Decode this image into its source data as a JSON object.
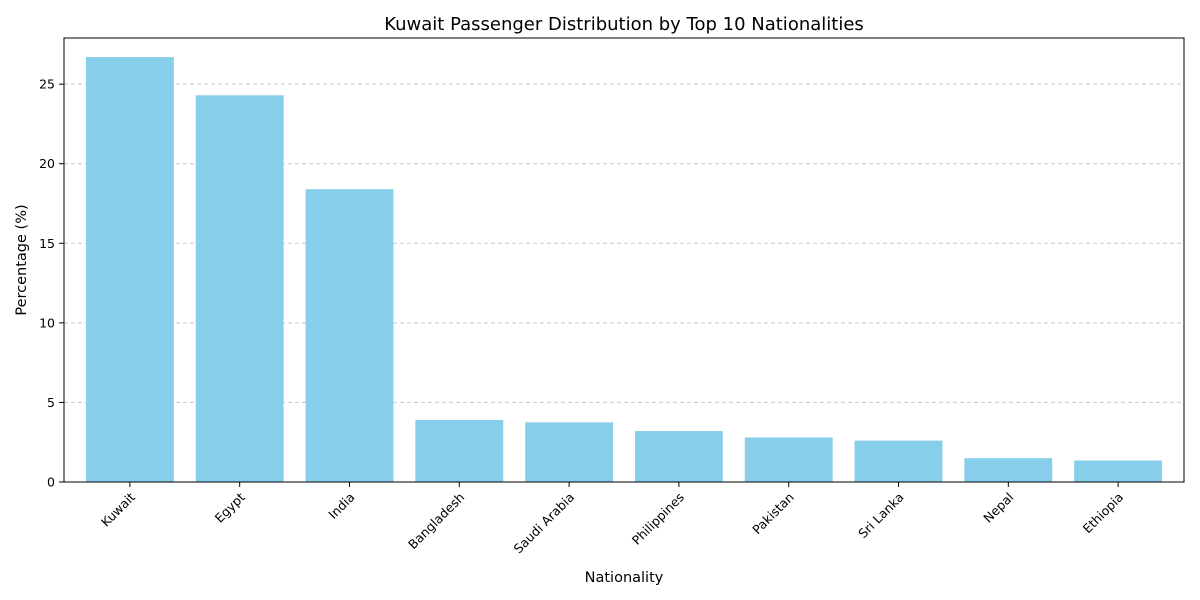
{
  "chart_data": {
    "type": "bar",
    "title": "Kuwait Passenger Distribution by Top 10 Nationalities",
    "xlabel": "Nationality",
    "ylabel": "Percentage (%)",
    "categories": [
      "Kuwait",
      "Egypt",
      "India",
      "Bangladesh",
      "Saudi Arabia",
      "Philippines",
      "Pakistan",
      "Sri Lanka",
      "Nepal",
      "Ethiopia"
    ],
    "values": [
      26.7,
      24.3,
      18.4,
      3.9,
      3.75,
      3.2,
      2.8,
      2.6,
      1.5,
      1.35
    ],
    "ylim": [
      0,
      27.9
    ],
    "yticks": [
      0,
      5,
      10,
      15,
      20,
      25
    ],
    "grid": "y-dashed",
    "bar_color": "#87ceeb",
    "grid_color": "#c8c8c8"
  }
}
